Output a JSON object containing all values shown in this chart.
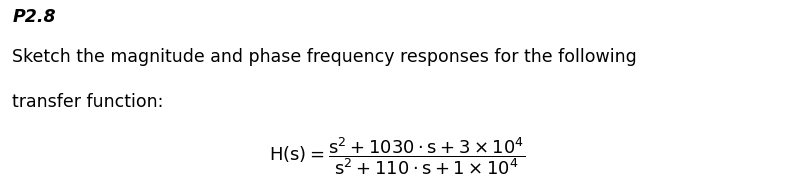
{
  "problem_number": "P2.8",
  "line1": "Sketch the magnitude and phase frequency responses for the following",
  "line2": "transfer function:",
  "background_color": "#ffffff",
  "text_color": "#000000",
  "font_size_body": 12.5,
  "fig_width": 8.04,
  "fig_height": 1.93,
  "dpi": 100
}
